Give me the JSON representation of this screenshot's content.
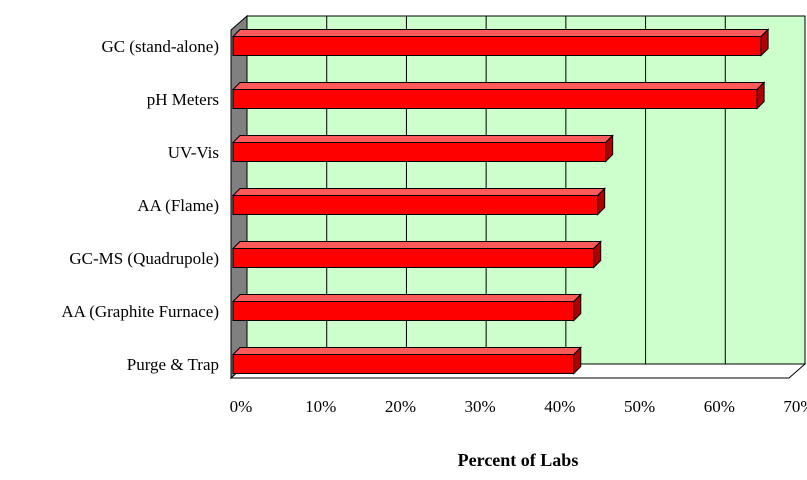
{
  "chart_data": {
    "type": "bar",
    "orientation": "horizontal",
    "style": "3d",
    "title": "",
    "xlabel": "Percent of Labs",
    "ylabel": "",
    "categories": [
      "GC (stand-alone)",
      "pH Meters",
      "UV-Vis",
      "AA (Flame)",
      "GC-MS (Quadrupole)",
      "AA (Graphite Furnace)",
      "Purge & Trap"
    ],
    "values": [
      66.5,
      66,
      47,
      46,
      45.5,
      43,
      43
    ],
    "value_unit": "%",
    "xlim": [
      0,
      70
    ],
    "x_ticks": [
      0,
      10,
      20,
      30,
      40,
      50,
      60,
      70
    ],
    "x_tick_labels": [
      "0%",
      "10%",
      "20%",
      "30%",
      "40%",
      "50%",
      "60%",
      "70%"
    ],
    "grid": true,
    "legend": "none",
    "colors": {
      "bar_front": "#ff0000",
      "bar_top": "#ff5a5a",
      "bar_side": "#b00000",
      "plot_background": "#ccffcc",
      "left_wall": "#808080",
      "floor": "#ffffff"
    }
  }
}
